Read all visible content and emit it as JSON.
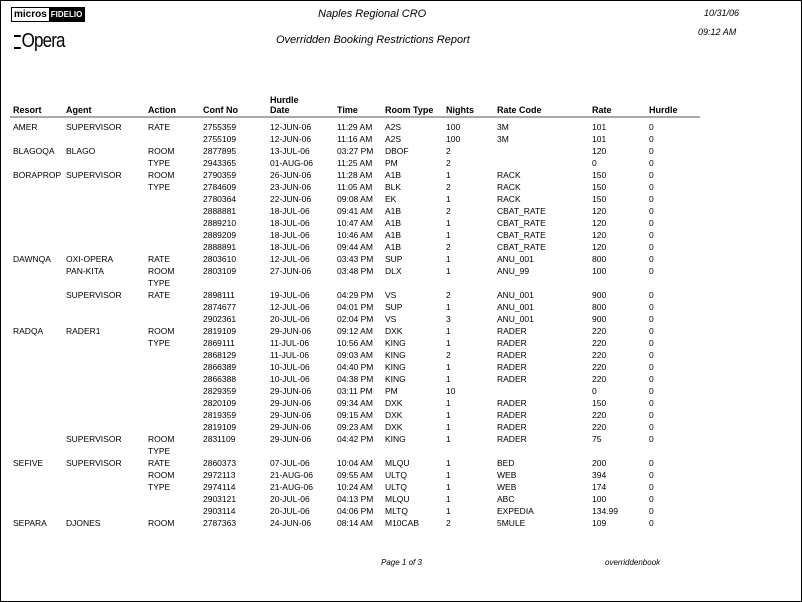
{
  "header": {
    "logo_micros": "micros",
    "logo_fidelio": "FIDELIO",
    "logo_opera": "Opera",
    "property": "Naples Regional CRO",
    "title": "Overridden Booking Restrictions Report",
    "date": "10/31/06",
    "time": "09:12 AM"
  },
  "columns": [
    "Resort",
    "Agent",
    "Action",
    "Conf No",
    "Hurdle",
    "Time",
    "Room Type",
    "Nights",
    "Rate Code",
    "Rate",
    "Hurdle"
  ],
  "columns_date_line2": "Date",
  "rows": [
    [
      "AMER",
      "SUPERVISOR",
      "RATE",
      "2755359",
      "12-JUN-06",
      "11:29 AM",
      "A2S",
      "100",
      "3M",
      "101",
      "0"
    ],
    [
      "",
      "",
      "",
      "2755109",
      "12-JUN-06",
      "11:16 AM",
      "A2S",
      "100",
      "3M",
      "101",
      "0"
    ],
    [
      "BLAGOQA",
      "BLAGO",
      "ROOM",
      "2877895",
      "13-JUL-06",
      "03:27 PM",
      "DBOF",
      "2",
      "",
      "120",
      "0"
    ],
    [
      "",
      "",
      "TYPE",
      "2943365",
      "01-AUG-06",
      "11:25 AM",
      "PM",
      "2",
      "",
      "0",
      "0"
    ],
    [
      "BORAPROP",
      "SUPERVISOR",
      "ROOM",
      "2790359",
      "26-JUN-06",
      "11:28 AM",
      "A1B",
      "1",
      "RACK",
      "150",
      "0"
    ],
    [
      "",
      "",
      "TYPE",
      "2784609",
      "23-JUN-06",
      "11:05 AM",
      "BLK",
      "2",
      "RACK",
      "150",
      "0"
    ],
    [
      "",
      "",
      "",
      "2780364",
      "22-JUN-06",
      "09:08 AM",
      "EK",
      "1",
      "RACK",
      "150",
      "0"
    ],
    [
      "",
      "",
      "",
      "2888881",
      "18-JUL-06",
      "09:41 AM",
      "A1B",
      "2",
      "CBAT_RATE",
      "120",
      "0"
    ],
    [
      "",
      "",
      "",
      "2889210",
      "18-JUL-06",
      "10:47 AM",
      "A1B",
      "1",
      "CBAT_RATE",
      "120",
      "0"
    ],
    [
      "",
      "",
      "",
      "2889209",
      "18-JUL-06",
      "10:46 AM",
      "A1B",
      "1",
      "CBAT_RATE",
      "120",
      "0"
    ],
    [
      "",
      "",
      "",
      "2888891",
      "18-JUL-06",
      "09:44 AM",
      "A1B",
      "2",
      "CBAT_RATE",
      "120",
      "0"
    ],
    [
      "DAWNQA",
      "OXI-OPERA",
      "RATE",
      "2803610",
      "12-JUL-06",
      "03:43 PM",
      "SUP",
      "1",
      "ANU_001",
      "800",
      "0"
    ],
    [
      "",
      "PAN-KITA",
      "ROOM",
      "2803109",
      "27-JUN-06",
      "03:48 PM",
      "DLX",
      "1",
      "ANU_99",
      "100",
      "0"
    ],
    [
      "",
      "",
      "TYPE",
      "",
      "",
      "",
      "",
      "",
      "",
      "",
      ""
    ],
    [
      "",
      "SUPERVISOR",
      "RATE",
      "2898111",
      "19-JUL-06",
      "04:29 PM",
      "VS",
      "2",
      "ANU_001",
      "900",
      "0"
    ],
    [
      "",
      "",
      "",
      "2874677",
      "12-JUL-06",
      "04:01 PM",
      "SUP",
      "1",
      "ANU_001",
      "800",
      "0"
    ],
    [
      "",
      "",
      "",
      "2902361",
      "20-JUL-06",
      "02:04 PM",
      "VS",
      "3",
      "ANU_001",
      "900",
      "0"
    ],
    [
      "RADQA",
      "RADER1",
      "ROOM",
      "2819109",
      "29-JUN-06",
      "09:12 AM",
      "DXK",
      "1",
      "RADER",
      "220",
      "0"
    ],
    [
      "",
      "",
      "TYPE",
      "2869111",
      "11-JUL-06",
      "10:56 AM",
      "KING",
      "1",
      "RADER",
      "220",
      "0"
    ],
    [
      "",
      "",
      "",
      "2868129",
      "11-JUL-06",
      "09:03 AM",
      "KING",
      "2",
      "RADER",
      "220",
      "0"
    ],
    [
      "",
      "",
      "",
      "2866389",
      "10-JUL-06",
      "04:40 PM",
      "KING",
      "1",
      "RADER",
      "220",
      "0"
    ],
    [
      "",
      "",
      "",
      "2866388",
      "10-JUL-06",
      "04:38 PM",
      "KING",
      "1",
      "RADER",
      "220",
      "0"
    ],
    [
      "",
      "",
      "",
      "2829359",
      "29-JUN-06",
      "03:11 PM",
      "PM",
      "10",
      "",
      "0",
      "0"
    ],
    [
      "",
      "",
      "",
      "2820109",
      "29-JUN-06",
      "09:34 AM",
      "DXK",
      "1",
      "RADER",
      "150",
      "0"
    ],
    [
      "",
      "",
      "",
      "2819359",
      "29-JUN-06",
      "09:15 AM",
      "DXK",
      "1",
      "RADER",
      "220",
      "0"
    ],
    [
      "",
      "",
      "",
      "2819109",
      "29-JUN-06",
      "09:23 AM",
      "DXK",
      "1",
      "RADER",
      "220",
      "0"
    ],
    [
      "",
      "SUPERVISOR",
      "ROOM",
      "2831109",
      "29-JUN-06",
      "04:42 PM",
      "KING",
      "1",
      "RADER",
      "75",
      "0"
    ],
    [
      "",
      "",
      "TYPE",
      "",
      "",
      "",
      "",
      "",
      "",
      "",
      ""
    ],
    [
      "SEFIVE",
      "SUPERVISOR",
      "RATE",
      "2860373",
      "07-JUL-06",
      "10:04 AM",
      "MLQU",
      "1",
      "BED",
      "200",
      "0"
    ],
    [
      "",
      "",
      "ROOM",
      "2972113",
      "21-AUG-06",
      "09:55 AM",
      "ULTQ",
      "1",
      "WEB",
      "394",
      "0"
    ],
    [
      "",
      "",
      "TYPE",
      "2974114",
      "21-AUG-06",
      "10:24 AM",
      "ULTQ",
      "1",
      "WEB",
      "174",
      "0"
    ],
    [
      "",
      "",
      "",
      "2903121",
      "20-JUL-06",
      "04:13 PM",
      "MLQU",
      "1",
      "ABC",
      "100",
      "0"
    ],
    [
      "",
      "",
      "",
      "2903114",
      "20-JUL-06",
      "04:06 PM",
      "MLTQ",
      "1",
      "EXPEDIA",
      "134.99",
      "0"
    ],
    [
      "SEPARA",
      "DJONES",
      "ROOM",
      "2787363",
      "24-JUN-06",
      "08:14 AM",
      "M10CAB",
      "2",
      "5MULE",
      "109",
      "0"
    ]
  ],
  "footer": {
    "page": "Page 1 of 3",
    "report_name": "overriddenbook"
  }
}
